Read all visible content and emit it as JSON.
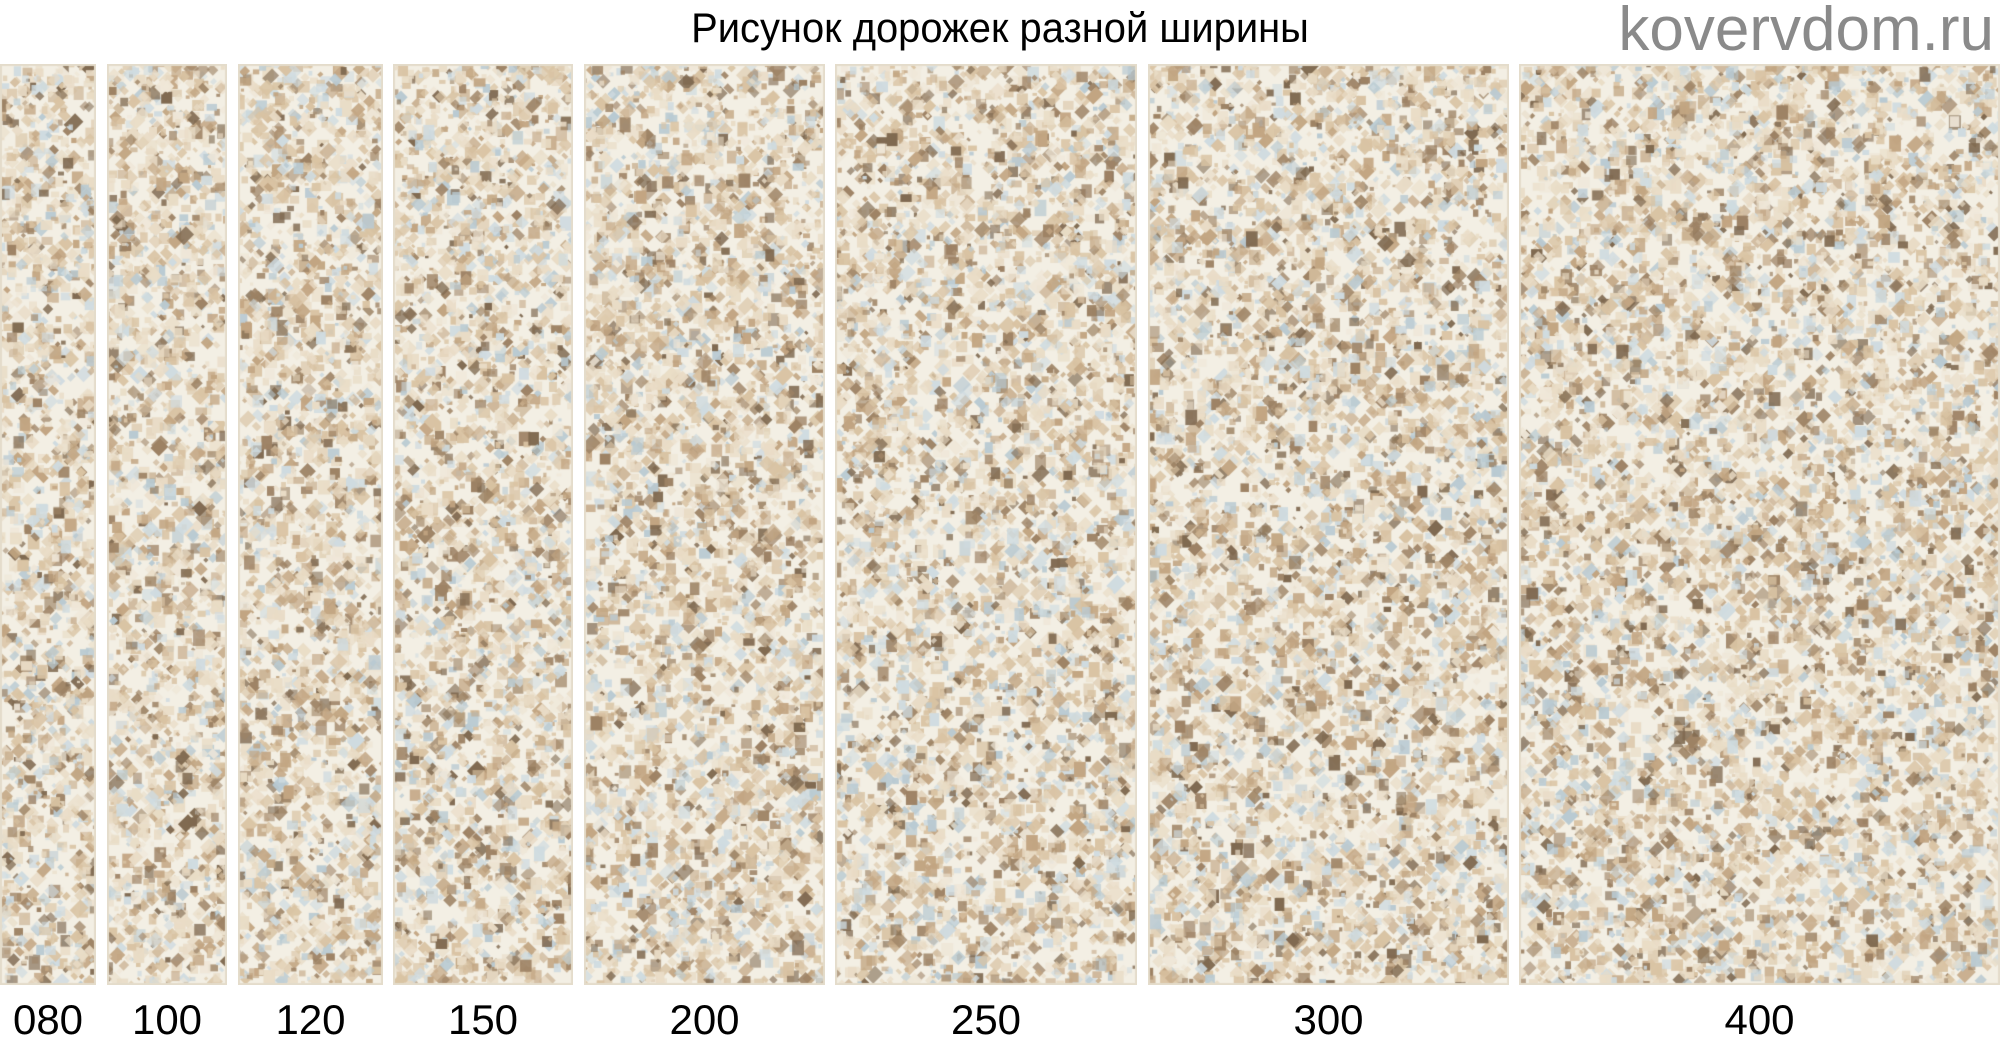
{
  "title": "Рисунок дорожек разной ширины",
  "strips": [
    {
      "label": "080"
    },
    {
      "label": "100"
    },
    {
      "label": "120"
    },
    {
      "label": "150"
    },
    {
      "label": "200"
    },
    {
      "label": "250"
    },
    {
      "label": "300"
    },
    {
      "label": "400"
    }
  ],
  "watermark": "kovervdom.ru",
  "colors": {
    "background": "#f3efe4",
    "pattern": [
      "#e9dcc6",
      "#d9c3a3",
      "#c2a582",
      "#9d8264",
      "#7f6950",
      "#cfdbe0",
      "#b9cad2",
      "#efe7d8"
    ]
  }
}
